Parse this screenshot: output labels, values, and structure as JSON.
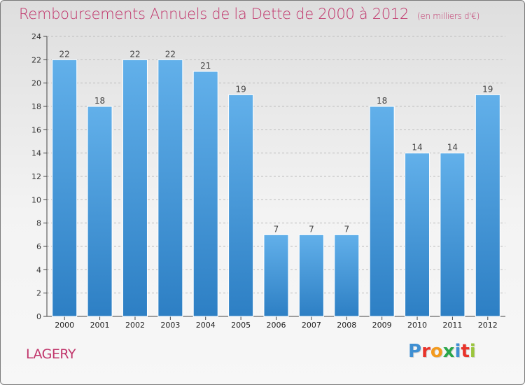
{
  "header": {
    "title": "Remboursements Annuels de la Dette de 2000 à 2012",
    "subtitle": "(en milliers d'€)"
  },
  "footer": {
    "location": "LAGERY",
    "logo_text": "Proxiti",
    "logo_colors": [
      "#3f8fd2",
      "#e8332a",
      "#f39a1e",
      "#2aa64a",
      "#3f8fd2",
      "#e8332a",
      "#9bc53d"
    ]
  },
  "colors": {
    "bar": "#3e92d6",
    "bar_light": "#62b0ea",
    "title": "#c0346a",
    "grid": "#bcbcbc"
  },
  "chart_data": {
    "type": "bar",
    "title": "Remboursements Annuels de la Dette de 2000 à 2012",
    "subtitle": "(en milliers d'€)",
    "categories": [
      "2000",
      "2001",
      "2002",
      "2003",
      "2004",
      "2005",
      "2006",
      "2007",
      "2008",
      "2009",
      "2010",
      "2011",
      "2012"
    ],
    "values": [
      22,
      18,
      22,
      22,
      21,
      19,
      7,
      7,
      7,
      18,
      14,
      14,
      19
    ],
    "ylim": [
      0,
      24
    ],
    "yticks": [
      0,
      2,
      4,
      6,
      8,
      10,
      12,
      14,
      16,
      18,
      20,
      22,
      24
    ],
    "xlabel": "",
    "ylabel": "",
    "grid": true,
    "data_labels": true
  }
}
